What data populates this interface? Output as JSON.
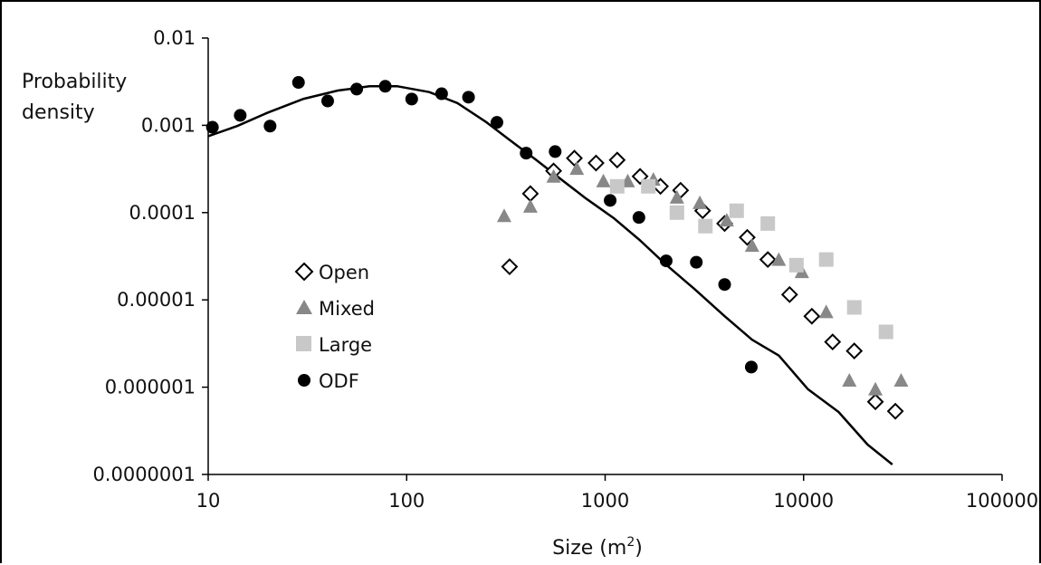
{
  "chart_data": {
    "type": "scatter",
    "title": "",
    "xlabel": "Size (m",
    "xlabel_sup": "2",
    "xlabel_close": ")",
    "ylabel_line1": "Probability",
    "ylabel_line2": "density",
    "x_scale": "log",
    "y_scale": "log",
    "xlim": [
      10,
      100000
    ],
    "ylim": [
      1e-07,
      0.01
    ],
    "x_ticks": [
      10,
      100,
      1000,
      10000,
      100000
    ],
    "x_tick_labels": [
      "10",
      "100",
      "1000",
      "10000",
      "100000"
    ],
    "y_ticks": [
      0.01,
      0.001,
      0.0001,
      1e-05,
      1e-06,
      1e-07
    ],
    "y_tick_labels": [
      "0.01",
      "0.001",
      "0.0001",
      "0.00001",
      "0.000001",
      "0.0000001"
    ],
    "grid": false,
    "legend_placement": "left-middle",
    "series": [
      {
        "name": "Open",
        "marker": "diamond-open",
        "color": "#000000",
        "points": [
          [
            330,
            2.4e-05
          ],
          [
            420,
            0.000165
          ],
          [
            550,
            0.0003
          ],
          [
            700,
            0.00042
          ],
          [
            900,
            0.00037
          ],
          [
            1150,
            0.0004
          ],
          [
            1500,
            0.00026
          ],
          [
            1900,
            0.0002
          ],
          [
            2400,
            0.00018
          ],
          [
            3100,
            0.000105
          ],
          [
            4000,
            7.5e-05
          ],
          [
            5200,
            5.2e-05
          ],
          [
            6600,
            2.9e-05
          ],
          [
            8500,
            1.15e-05
          ],
          [
            11000,
            6.5e-06
          ],
          [
            14000,
            3.3e-06
          ],
          [
            18000,
            2.6e-06
          ],
          [
            23000,
            6.8e-07
          ],
          [
            29000,
            5.3e-07
          ]
        ]
      },
      {
        "name": "Mixed",
        "marker": "triangle",
        "color": "#888888",
        "points": [
          [
            310,
            9.2e-05
          ],
          [
            420,
            0.000118
          ],
          [
            550,
            0.00026
          ],
          [
            720,
            0.00032
          ],
          [
            980,
            0.00023
          ],
          [
            1300,
            0.00023
          ],
          [
            1750,
            0.00024
          ],
          [
            2300,
            0.00015
          ],
          [
            3000,
            0.00013
          ],
          [
            4100,
            8.2e-05
          ],
          [
            5500,
            4.2e-05
          ],
          [
            7500,
            2.9e-05
          ],
          [
            9800,
            2.1e-05
          ],
          [
            13000,
            7.3e-06
          ],
          [
            17000,
            1.2e-06
          ],
          [
            23000,
            9.5e-07
          ],
          [
            31000,
            1.2e-06
          ]
        ]
      },
      {
        "name": "Large",
        "marker": "square",
        "color": "#c8c8c8",
        "points": [
          [
            1150,
            0.0002
          ],
          [
            1650,
            0.0002
          ],
          [
            2300,
            0.0001
          ],
          [
            3200,
            7e-05
          ],
          [
            4600,
            0.000105
          ],
          [
            6600,
            7.5e-05
          ],
          [
            9200,
            2.5e-05
          ],
          [
            13000,
            2.9e-05
          ],
          [
            18000,
            8.2e-06
          ],
          [
            26000,
            4.3e-06
          ]
        ]
      },
      {
        "name": "ODF",
        "marker": "circle",
        "color": "#000000",
        "points": [
          [
            10.5,
            0.00095
          ],
          [
            14.5,
            0.0013
          ],
          [
            20.5,
            0.00098
          ],
          [
            28.5,
            0.0031
          ],
          [
            40,
            0.0019
          ],
          [
            56,
            0.0026
          ],
          [
            78,
            0.0028
          ],
          [
            106,
            0.002
          ],
          [
            150,
            0.0023
          ],
          [
            205,
            0.0021
          ],
          [
            285,
            0.00108
          ],
          [
            400,
            0.00048
          ],
          [
            560,
            0.0005
          ],
          [
            1060,
            0.000138
          ],
          [
            1480,
            8.8e-05
          ],
          [
            2030,
            2.8e-05
          ],
          [
            2880,
            2.7e-05
          ],
          [
            4000,
            1.5e-05
          ],
          [
            5450,
            1.7e-06
          ]
        ]
      }
    ],
    "fit_line": {
      "color": "#000000",
      "points": [
        [
          10,
          0.00075
        ],
        [
          14,
          0.00098
        ],
        [
          20,
          0.0014
        ],
        [
          30,
          0.002
        ],
        [
          45,
          0.0025
        ],
        [
          65,
          0.0028
        ],
        [
          90,
          0.0028
        ],
        [
          130,
          0.0024
        ],
        [
          180,
          0.0018
        ],
        [
          250,
          0.0011
        ],
        [
          330,
          0.00068
        ],
        [
          450,
          0.0004
        ],
        [
          600,
          0.00024
        ],
        [
          800,
          0.000145
        ],
        [
          1100,
          8.7e-05
        ],
        [
          1500,
          4.8e-05
        ],
        [
          2000,
          2.6e-05
        ],
        [
          2800,
          1.35e-05
        ],
        [
          4000,
          6.5e-06
        ],
        [
          5500,
          3.5e-06
        ],
        [
          7500,
          2.3e-06
        ],
        [
          10500,
          9.5e-07
        ],
        [
          15000,
          5.2e-07
        ],
        [
          21000,
          2.2e-07
        ],
        [
          28000,
          1.3e-07
        ]
      ]
    }
  }
}
